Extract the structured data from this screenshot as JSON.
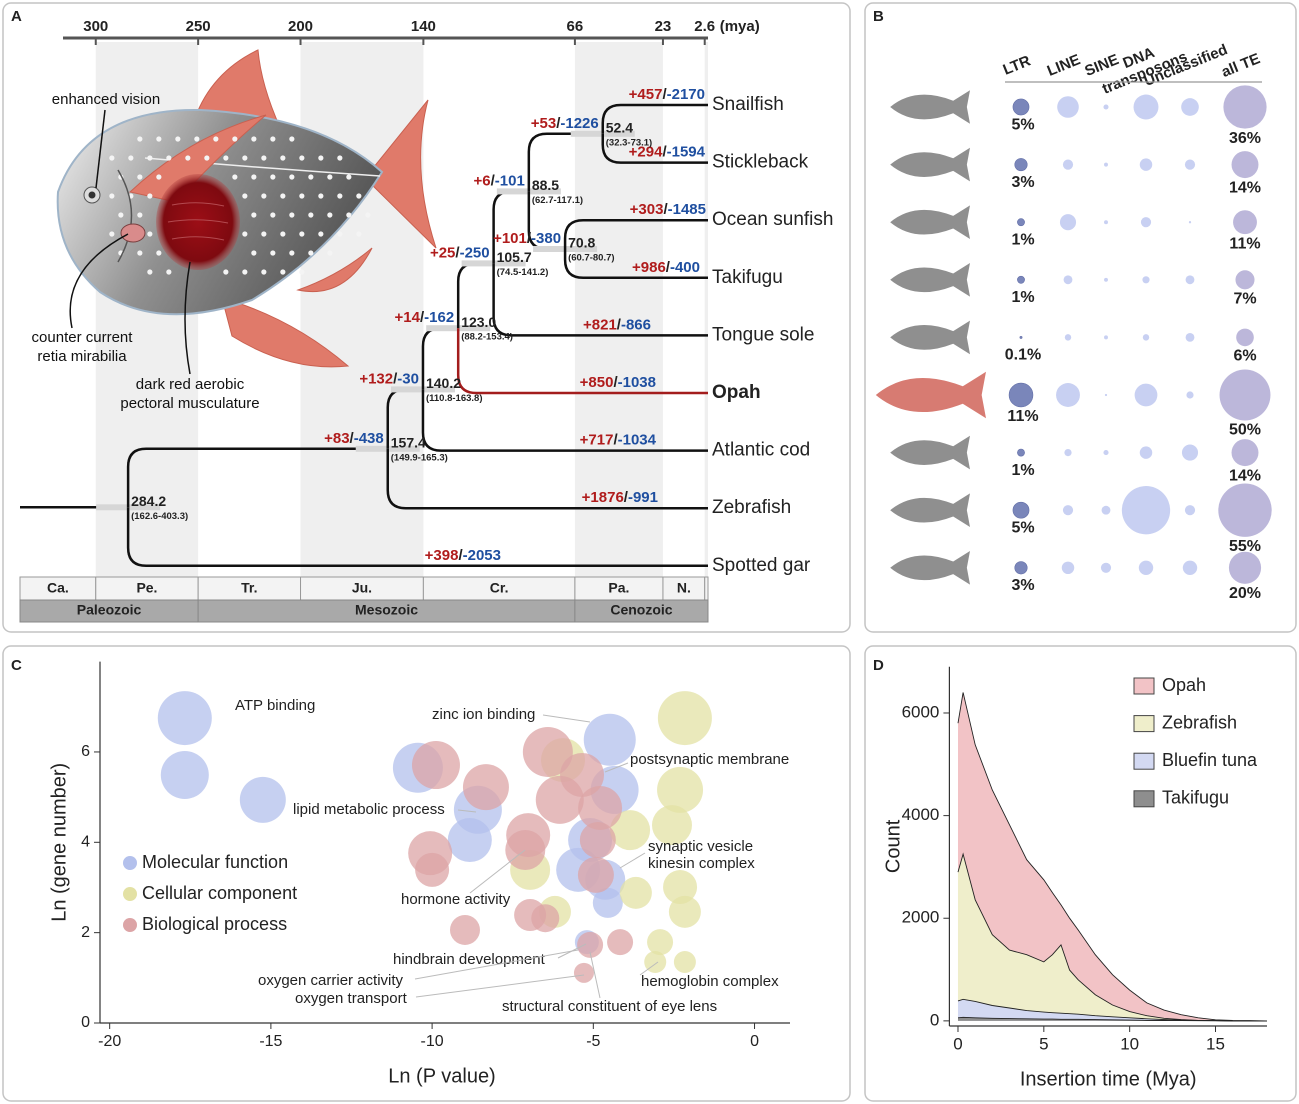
{
  "panel_labels": [
    "A",
    "B",
    "C",
    "D"
  ],
  "tree": {
    "timeline": {
      "ticks": [
        300,
        250,
        200,
        140,
        66,
        23,
        2.6
      ],
      "unit": "(mya)",
      "xlim": [
        316,
        1
      ]
    },
    "periods": [
      "Ca.",
      "Pe.",
      "Tr.",
      "Ju.",
      "Cr.",
      "Pa.",
      "N."
    ],
    "eras": [
      "Paleozoic",
      "Mesozoic",
      "Cenozoic"
    ],
    "separator": "/",
    "annotations": {
      "vision": "enhanced vision",
      "retia": [
        "counter current",
        "retia mirabilia"
      ],
      "muscle": [
        "dark red aerobic",
        "pectoral musculature"
      ]
    },
    "root": {
      "age": 284.2,
      "ci": "(162.6-403.3)",
      "children": [
        {
          "age": 157.4,
          "ci": "(149.9-165.3)",
          "gain": "+83",
          "loss": "-438",
          "children": [
            {
              "age": 140.2,
              "ci": "(110.8-163.8)",
              "gain": "+132",
              "loss": "-30",
              "children": [
                {
                  "age": {
                    "value": 123,
                    "label": "123.0"
                  },
                  "ci": "(88.2-153.4)",
                  "gain": "+14",
                  "loss": "-162",
                  "children": [
                    {
                      "age": 105.7,
                      "ci": "(74.5-141.2)",
                      "gain": "+25",
                      "loss": "-250",
                      "children": [
                        {
                          "age": 88.5,
                          "ci": "(62.7-117.1)",
                          "gain": "+6",
                          "loss": "-101",
                          "children": [
                            {
                              "age": 52.4,
                              "ci": "(32.3-73.1)",
                              "gain": "+53",
                              "loss": "-1226",
                              "children": [
                                {
                                  "name": "Snailfish",
                                  "gain": "+457",
                                  "loss": "-2170"
                                },
                                {
                                  "name": "Stickleback",
                                  "gain": "+294",
                                  "loss": "-1594"
                                }
                              ]
                            },
                            {
                              "age": 70.8,
                              "ci": "(60.7-80.7)",
                              "gain": "+101",
                              "loss": "-380",
                              "children": [
                                {
                                  "name": "Ocean sunfish",
                                  "gain": "+303",
                                  "loss": "-1485"
                                },
                                {
                                  "name": "Takifugu",
                                  "gain": "+986",
                                  "loss": "-400"
                                }
                              ]
                            }
                          ]
                        },
                        {
                          "name": "Tongue sole",
                          "gain": "+821",
                          "loss": "-866"
                        }
                      ]
                    },
                    {
                      "name": "Opah",
                      "gain": "+850",
                      "loss": "-1038",
                      "color": "#a31d1d"
                    }
                  ]
                },
                {
                  "name": "Atlantic cod",
                  "gain": "+717",
                  "loss": "-1034"
                }
              ]
            },
            {
              "name": "Zebrafish",
              "gain": "+1876",
              "loss": "-991"
            }
          ]
        },
        {
          "name": "Spotted gar",
          "gain": "+398",
          "loss": "-2053"
        }
      ]
    }
  },
  "te_content": {
    "columns": [
      "LTR",
      "LINE",
      "SINE",
      [
        "DNA",
        "transposons"
      ],
      "Unclassified",
      "all TE"
    ],
    "bubble_colors": [
      "#7a86ba",
      "#c8d0f2",
      "#c8d0f2",
      "#c8d0f2",
      "#c8d0f2",
      "#bcb7da"
    ],
    "rows": [
      {
        "values": [
          5,
          9,
          0.5,
          12,
          6,
          36
        ],
        "value_labels": [
          "5%",
          null,
          null,
          null,
          null,
          "36%"
        ]
      },
      {
        "values": [
          3,
          2,
          0.3,
          3,
          2,
          14
        ],
        "value_labels": [
          "3%",
          null,
          null,
          null,
          null,
          "14%"
        ]
      },
      {
        "values": [
          1,
          5,
          0.3,
          2,
          0.1,
          11
        ],
        "value_labels": [
          "1%",
          null,
          null,
          null,
          null,
          "11%"
        ]
      },
      {
        "values": [
          1,
          1.5,
          0.3,
          1,
          1.5,
          7
        ],
        "value_labels": [
          "1%",
          null,
          null,
          null,
          null,
          "7%"
        ]
      },
      {
        "values": [
          0.1,
          0.8,
          0.3,
          0.8,
          1.5,
          6
        ],
        "value_labels": [
          "0.1%",
          null,
          null,
          null,
          null,
          "6%"
        ]
      },
      {
        "values": [
          11,
          11,
          0.1,
          10,
          1,
          50
        ],
        "value_labels": [
          "11%",
          null,
          null,
          null,
          null,
          "50%"
        ]
      },
      {
        "values": [
          1,
          1,
          0.5,
          3,
          5,
          14
        ],
        "value_labels": [
          "1%",
          null,
          null,
          null,
          null,
          "14%"
        ]
      },
      {
        "values": [
          5,
          2,
          1.5,
          45,
          2,
          55
        ],
        "value_labels": [
          "5%",
          null,
          null,
          null,
          null,
          "55%"
        ]
      },
      {
        "values": [
          3,
          3,
          2,
          4,
          4,
          20
        ],
        "value_labels": [
          "3%",
          null,
          null,
          null,
          null,
          "20%"
        ]
      }
    ]
  },
  "chart_data": [
    {
      "type": "scatter",
      "xlabel": "Ln (P value)",
      "ylabel": "Ln (gene number)",
      "xlim": [
        -20.3,
        1.1
      ],
      "ylim": [
        0,
        8
      ],
      "xticks": [
        -20,
        -15,
        -10,
        -5,
        0
      ],
      "yticks": [
        0,
        2,
        4,
        6
      ],
      "legend": "left",
      "series": [
        {
          "name": "Molecular function",
          "color": "#b3c0ec",
          "x": [
            -17.67,
            -17.67,
            -15.25,
            -10.44,
            -8.58,
            -8.83,
            -4.49,
            -4.34,
            -5.1,
            -5.47,
            -4.63,
            -4.55,
            -5.2
          ],
          "values": [
            6.75,
            5.49,
            4.94,
            5.65,
            4.72,
            4.05,
            6.27,
            5.16,
            4.05,
            3.39,
            3.17,
            2.66,
            1.79
          ],
          "sizes": [
            27,
            24,
            23,
            25,
            24,
            22,
            26,
            24,
            22,
            22,
            20,
            15,
            12
          ]
        },
        {
          "name": "Cellular component",
          "color": "#e3e1a4",
          "x": [
            -2.16,
            -2.31,
            -2.56,
            -3.86,
            -2.31,
            -2.16,
            -3.68,
            -6.19,
            -2.93,
            -3.08,
            -2.16,
            -6.96,
            -5.94
          ],
          "values": [
            6.75,
            5.16,
            4.38,
            4.27,
            3.01,
            2.46,
            2.88,
            2.46,
            1.79,
            1.35,
            1.35,
            3.39,
            5.82
          ],
          "sizes": [
            27,
            23,
            20,
            20,
            17,
            16,
            16,
            16,
            13,
            11,
            11,
            20,
            22
          ]
        },
        {
          "name": "Biological process",
          "color": "#dca4a6",
          "x": [
            -9.88,
            -8.33,
            -6.41,
            -5.35,
            -6.04,
            -4.79,
            -7.02,
            -4.86,
            -7.11,
            -10.06,
            -10.0,
            -4.92,
            -6.96,
            -6.49,
            -8.98,
            -5.1,
            -4.17,
            -5.29
          ],
          "values": [
            5.71,
            5.22,
            6.0,
            5.49,
            4.94,
            4.76,
            4.16,
            4.05,
            3.83,
            3.76,
            3.39,
            3.28,
            2.39,
            2.32,
            2.06,
            1.73,
            1.79,
            1.11
          ],
          "sizes": [
            24,
            23,
            25,
            22,
            24,
            22,
            22,
            18,
            20,
            22,
            17,
            18,
            16,
            14,
            15,
            13,
            13,
            10
          ]
        }
      ],
      "annotations": [
        "ATP binding",
        "zinc ion binding",
        "postsynaptic membrane",
        "lipid metabolic process",
        "synaptic vesicle",
        "kinesin complex",
        "hormone activity",
        "hindbrain development",
        "oxygen carrier activity",
        "oxygen transport",
        "hemoglobin complex",
        "structural constituent of eye lens"
      ]
    },
    {
      "type": "area",
      "xlabel": "Insertion time  (Mya)",
      "ylabel": "Count",
      "x": [
        0,
        0.3,
        1,
        2,
        3,
        4,
        5,
        5.5,
        6,
        6.5,
        7,
        8,
        9,
        10,
        11,
        12,
        13,
        14,
        15,
        16,
        17,
        18
      ],
      "xlim": [
        -0.5,
        18
      ],
      "ylim": [
        -100,
        6900
      ],
      "xticks": [
        0,
        5,
        10,
        15
      ],
      "yticks": [
        0,
        2000,
        4000,
        6000
      ],
      "legend": "upper right",
      "series": [
        {
          "name": "Opah",
          "color": "#f2c3c6",
          "values": [
            5800,
            6400,
            5380,
            4500,
            3820,
            3140,
            2750,
            2500,
            2260,
            2000,
            1770,
            1290,
            900,
            600,
            350,
            210,
            120,
            60,
            20,
            10,
            5,
            0
          ]
        },
        {
          "name": "Zebrafish",
          "color": "#efeecb",
          "values": [
            2900,
            3250,
            2360,
            1680,
            1380,
            1290,
            1150,
            1290,
            1480,
            990,
            800,
            510,
            310,
            180,
            100,
            50,
            25,
            10,
            5,
            0,
            0,
            0
          ]
        },
        {
          "name": "Bluefin tuna",
          "color": "#d3d9f2",
          "values": [
            390,
            420,
            380,
            300,
            250,
            200,
            170,
            160,
            150,
            140,
            130,
            100,
            80,
            60,
            40,
            25,
            15,
            10,
            5,
            0,
            0,
            0
          ]
        },
        {
          "name": "Takifugu",
          "color": "#8e8e8e",
          "values": [
            60,
            70,
            60,
            50,
            45,
            40,
            35,
            35,
            30,
            30,
            30,
            25,
            20,
            15,
            10,
            8,
            5,
            3,
            2,
            0,
            0,
            0
          ]
        }
      ]
    }
  ]
}
